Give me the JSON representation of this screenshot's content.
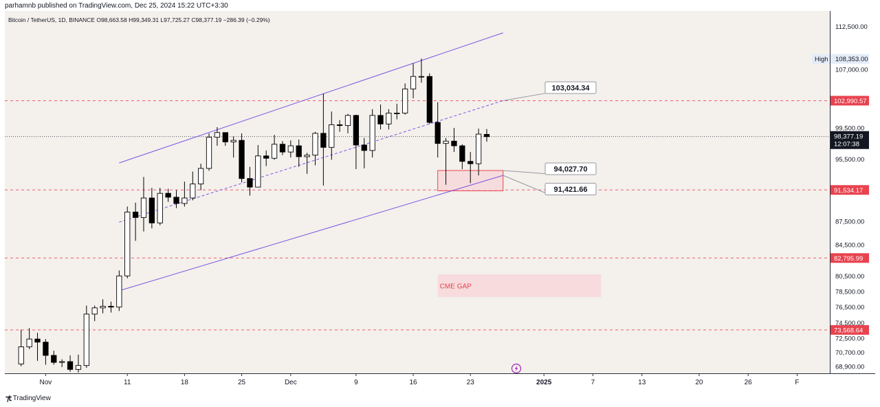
{
  "publisher": "parhamnb published on TradingView.com, Dec 25, 2024 15:22 UTC+3:30",
  "symbol_line": "Bitcoin / TetherUS, 1D, BINANCE O98,663.58 H99,349.31 L97,725.27 C98,377.19 −286.39 (−0.29%)",
  "brand": "TradingView",
  "colors": {
    "up_fill": "#ffffff",
    "down_fill": "#000000",
    "channel": "#7b55e0",
    "level_line": "#f05a6a",
    "price_badge": "#e8434f",
    "current_badge": "#131722",
    "box_fill": "#f7d7da",
    "plot_bg": "#f4f0ec"
  },
  "price_axis": {
    "ticks": [
      "112,500.00",
      "108,353.00",
      "107,000.00",
      "102,990.57",
      "99,500.00",
      "98,377.19",
      "95,500.00",
      "91,534.17",
      "87,500.00",
      "84,500.00",
      "82,795.99",
      "80,500.00",
      "78,500.00",
      "76,500.00",
      "74,500.00",
      "73,568.64",
      "72,500.00",
      "70,700.00",
      "68,900.00"
    ],
    "high_label": "High",
    "high_value": "108,353.00",
    "current_price": "98,377.19",
    "countdown": "12:07:38"
  },
  "time_axis": {
    "labels": [
      "Nov",
      "11",
      "18",
      "25",
      "Dec",
      "9",
      "16",
      "23",
      "2025",
      "7",
      "13",
      "20",
      "26",
      "F"
    ]
  },
  "annotations": {
    "callout_1": "103,034.34",
    "callout_2": "94,027.70",
    "callout_3": "91,421.66",
    "cme_gap": "CME GAP"
  },
  "level_badges": [
    "102,990.57",
    "91,534.17",
    "82,795.99",
    "73,568.64"
  ],
  "chart_data": {
    "type": "candlestick",
    "title": "Bitcoin / TetherUS, 1D, BINANCE",
    "ylim": [
      68000,
      114500
    ],
    "x_range": [
      "2024-10-27",
      "2025-02-05"
    ],
    "candles": [
      {
        "date": "2024-10-29",
        "o": 69200,
        "h": 73600,
        "l": 68900,
        "c": 71400
      },
      {
        "date": "2024-10-30",
        "o": 71400,
        "h": 73800,
        "l": 71100,
        "c": 72400
      },
      {
        "date": "2024-10-31",
        "o": 72400,
        "h": 73200,
        "l": 69600,
        "c": 72000
      },
      {
        "date": "2024-11-01",
        "o": 72000,
        "h": 72400,
        "l": 69100,
        "c": 70300
      },
      {
        "date": "2024-11-02",
        "o": 70300,
        "h": 70900,
        "l": 69100,
        "c": 69400
      },
      {
        "date": "2024-11-03",
        "o": 69400,
        "h": 69800,
        "l": 68800,
        "c": 69500
      },
      {
        "date": "2024-11-04",
        "o": 69500,
        "h": 70300,
        "l": 68200,
        "c": 68500
      },
      {
        "date": "2024-11-05",
        "o": 68500,
        "h": 70400,
        "l": 68100,
        "c": 69000
      },
      {
        "date": "2024-11-06",
        "o": 69000,
        "h": 76700,
        "l": 68700,
        "c": 75600
      },
      {
        "date": "2024-11-07",
        "o": 75600,
        "h": 76700,
        "l": 74700,
        "c": 76400
      },
      {
        "date": "2024-11-08",
        "o": 76400,
        "h": 77500,
        "l": 75700,
        "c": 76600
      },
      {
        "date": "2024-11-09",
        "o": 76600,
        "h": 77200,
        "l": 75800,
        "c": 76500
      },
      {
        "date": "2024-11-10",
        "o": 76500,
        "h": 81200,
        "l": 76000,
        "c": 80500
      },
      {
        "date": "2024-11-11",
        "o": 80500,
        "h": 89400,
        "l": 80200,
        "c": 88700
      },
      {
        "date": "2024-11-12",
        "o": 88700,
        "h": 89900,
        "l": 85000,
        "c": 88000
      },
      {
        "date": "2024-11-13",
        "o": 88000,
        "h": 93200,
        "l": 86200,
        "c": 90500
      },
      {
        "date": "2024-11-14",
        "o": 90500,
        "h": 91800,
        "l": 86600,
        "c": 87300
      },
      {
        "date": "2024-11-15",
        "o": 87300,
        "h": 91800,
        "l": 87000,
        "c": 91100
      },
      {
        "date": "2024-11-16",
        "o": 91100,
        "h": 91700,
        "l": 90000,
        "c": 90600
      },
      {
        "date": "2024-11-17",
        "o": 90600,
        "h": 91500,
        "l": 89200,
        "c": 89800
      },
      {
        "date": "2024-11-18",
        "o": 89800,
        "h": 92600,
        "l": 89400,
        "c": 90500
      },
      {
        "date": "2024-11-19",
        "o": 90500,
        "h": 93900,
        "l": 90200,
        "c": 92300
      },
      {
        "date": "2024-11-20",
        "o": 92300,
        "h": 94900,
        "l": 91500,
        "c": 94300
      },
      {
        "date": "2024-11-21",
        "o": 94300,
        "h": 98800,
        "l": 94000,
        "c": 98300
      },
      {
        "date": "2024-11-22",
        "o": 98300,
        "h": 99600,
        "l": 97200,
        "c": 98900
      },
      {
        "date": "2024-11-23",
        "o": 98900,
        "h": 98700,
        "l": 97200,
        "c": 97700
      },
      {
        "date": "2024-11-24",
        "o": 97700,
        "h": 98400,
        "l": 95700,
        "c": 97900
      },
      {
        "date": "2024-11-25",
        "o": 97900,
        "h": 98800,
        "l": 92500,
        "c": 93000
      },
      {
        "date": "2024-11-26",
        "o": 93000,
        "h": 94500,
        "l": 90800,
        "c": 91900
      },
      {
        "date": "2024-11-27",
        "o": 91900,
        "h": 97300,
        "l": 91900,
        "c": 95900
      },
      {
        "date": "2024-11-28",
        "o": 95900,
        "h": 96600,
        "l": 94600,
        "c": 95600
      },
      {
        "date": "2024-11-29",
        "o": 95600,
        "h": 98600,
        "l": 95400,
        "c": 97400
      },
      {
        "date": "2024-11-30",
        "o": 97400,
        "h": 97800,
        "l": 96000,
        "c": 96400
      },
      {
        "date": "2024-12-01",
        "o": 96400,
        "h": 97900,
        "l": 95700,
        "c": 97200
      },
      {
        "date": "2024-12-02",
        "o": 97200,
        "h": 98000,
        "l": 94500,
        "c": 95800
      },
      {
        "date": "2024-12-03",
        "o": 95800,
        "h": 96300,
        "l": 93600,
        "c": 96000
      },
      {
        "date": "2024-12-04",
        "o": 96000,
        "h": 99000,
        "l": 94700,
        "c": 98800
      },
      {
        "date": "2024-12-05",
        "o": 98800,
        "h": 103900,
        "l": 92100,
        "c": 97000
      },
      {
        "date": "2024-12-06",
        "o": 97000,
        "h": 101600,
        "l": 95400,
        "c": 99900
      },
      {
        "date": "2024-12-07",
        "o": 99900,
        "h": 100500,
        "l": 99000,
        "c": 99800
      },
      {
        "date": "2024-12-08",
        "o": 99800,
        "h": 101300,
        "l": 98800,
        "c": 101100
      },
      {
        "date": "2024-12-09",
        "o": 101100,
        "h": 101200,
        "l": 94200,
        "c": 97300
      },
      {
        "date": "2024-12-10",
        "o": 97300,
        "h": 98200,
        "l": 94300,
        "c": 96600
      },
      {
        "date": "2024-12-11",
        "o": 96600,
        "h": 101900,
        "l": 95700,
        "c": 101100
      },
      {
        "date": "2024-12-12",
        "o": 101100,
        "h": 102500,
        "l": 99300,
        "c": 100000
      },
      {
        "date": "2024-12-13",
        "o": 100000,
        "h": 101900,
        "l": 99300,
        "c": 101400
      },
      {
        "date": "2024-12-14",
        "o": 101400,
        "h": 102600,
        "l": 100600,
        "c": 101400
      },
      {
        "date": "2024-12-15",
        "o": 101400,
        "h": 105200,
        "l": 101200,
        "c": 104500
      },
      {
        "date": "2024-12-16",
        "o": 104500,
        "h": 107800,
        "l": 103300,
        "c": 106100
      },
      {
        "date": "2024-12-17",
        "o": 106100,
        "h": 108400,
        "l": 105300,
        "c": 106100
      },
      {
        "date": "2024-12-18",
        "o": 106100,
        "h": 106500,
        "l": 100000,
        "c": 100200
      },
      {
        "date": "2024-12-19",
        "o": 100200,
        "h": 102800,
        "l": 95700,
        "c": 97500
      },
      {
        "date": "2024-12-20",
        "o": 97500,
        "h": 98200,
        "l": 92200,
        "c": 97800
      },
      {
        "date": "2024-12-21",
        "o": 97800,
        "h": 99500,
        "l": 96400,
        "c": 97200
      },
      {
        "date": "2024-12-22",
        "o": 97200,
        "h": 97400,
        "l": 94200,
        "c": 95200
      },
      {
        "date": "2024-12-23",
        "o": 95200,
        "h": 96400,
        "l": 92400,
        "c": 94900
      },
      {
        "date": "2024-12-24",
        "o": 94900,
        "h": 99400,
        "l": 93400,
        "c": 98700
      },
      {
        "date": "2024-12-25",
        "o": 98663.58,
        "h": 99349.31,
        "l": 97725.27,
        "c": 98377.19
      }
    ],
    "channel": {
      "upper": [
        {
          "date": "2024-11-10",
          "price": 95000
        },
        {
          "date": "2024-12-27",
          "price": 111700
        }
      ],
      "middle": [
        {
          "date": "2024-11-10",
          "price": 87400
        },
        {
          "date": "2024-12-27",
          "price": 103000
        }
      ],
      "lower": [
        {
          "date": "2024-11-10",
          "price": 78600
        },
        {
          "date": "2024-12-27",
          "price": 93400
        }
      ]
    },
    "horizontal_levels": [
      102990.57,
      91534.17,
      82795.99,
      73568.64
    ],
    "boxes": [
      {
        "label": "",
        "from": "2024-12-19",
        "to": "2024-12-27",
        "top": 94027.7,
        "bottom": 91421.66
      },
      {
        "label": "CME GAP",
        "from": "2024-12-19",
        "to": "2025-01-08",
        "top": 80700,
        "bottom": 77800
      }
    ],
    "high": 108353.0,
    "current_price": 98377.19
  }
}
